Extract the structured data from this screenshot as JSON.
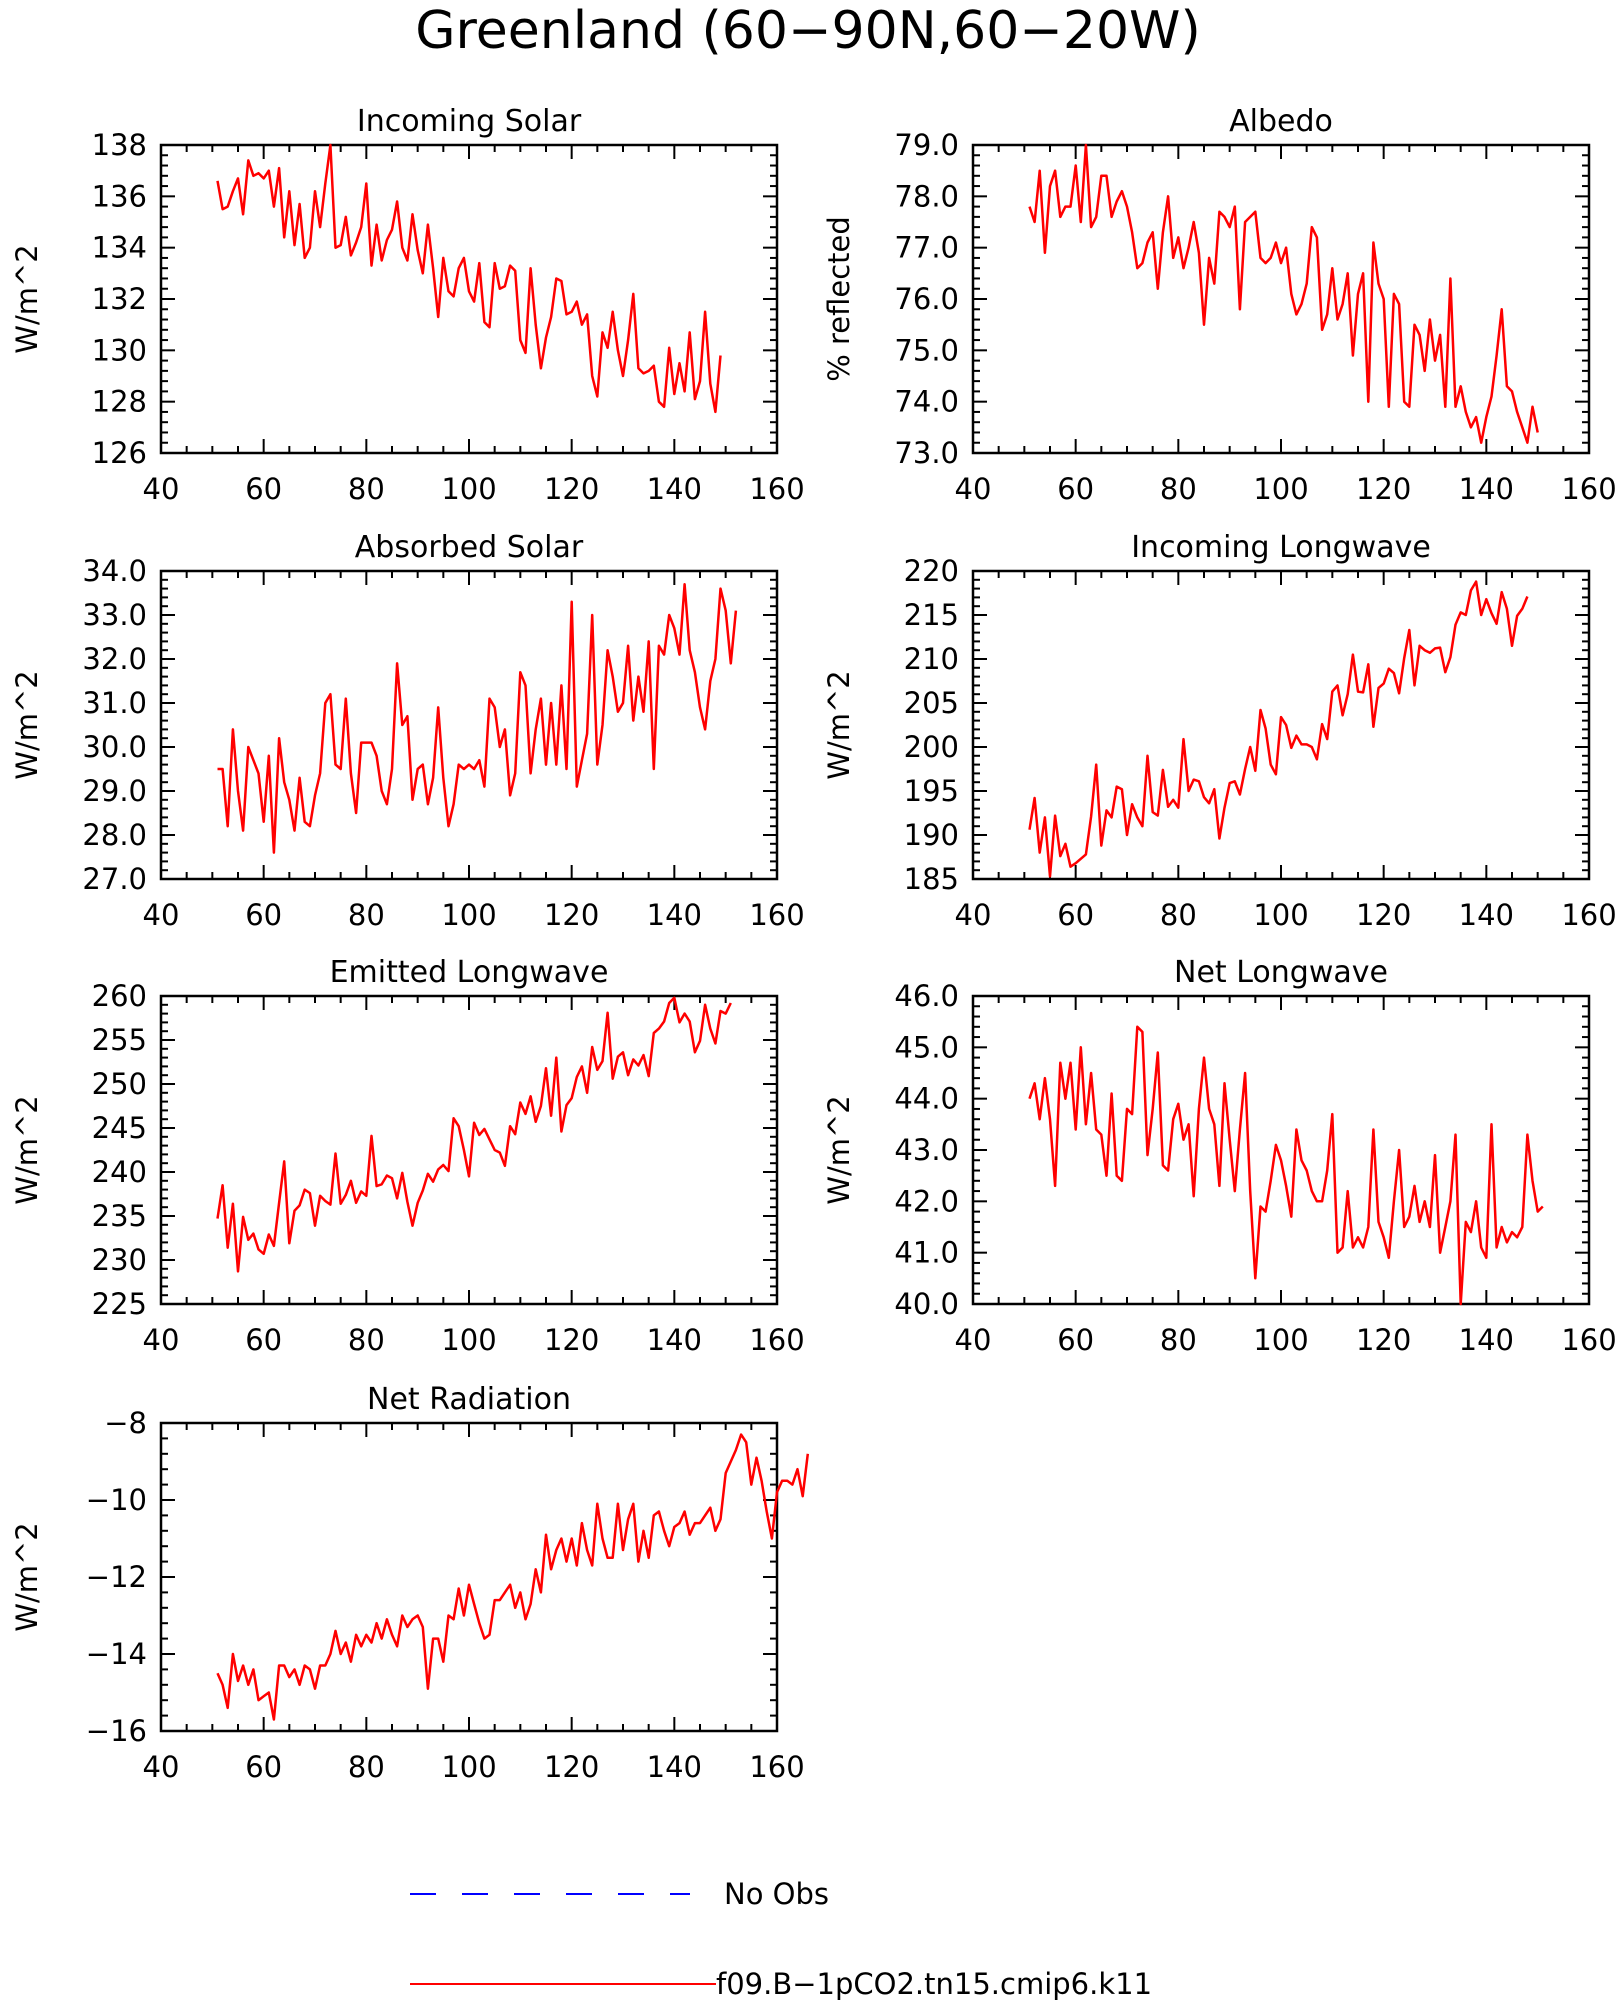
{
  "figure": {
    "title": "Greenland (60−90N,60−20W)",
    "legend": [
      {
        "name": "No Obs",
        "color": "#0000ff",
        "style": "dashed"
      },
      {
        "name": "f09.B−1pCO2.tn15.cmip6.k11",
        "color": "#ff0000",
        "style": "solid"
      }
    ]
  },
  "chart_data": [
    {
      "type": "line",
      "title": "Incoming Solar",
      "ylabel": "W/m^2",
      "xlabel": "",
      "xlim": [
        40,
        160
      ],
      "ylim": [
        126,
        138
      ],
      "xticks": [
        40,
        60,
        80,
        100,
        120,
        140,
        160
      ],
      "xtick_labels": [
        "40",
        "60",
        "80",
        "100",
        "120",
        "140",
        "160"
      ],
      "yticks": [
        126,
        128,
        130,
        132,
        134,
        136,
        138
      ],
      "ytick_labels": [
        "126",
        "128",
        "130",
        "132",
        "134",
        "136",
        "138"
      ],
      "line_color": "#ff0000",
      "x_start": 51,
      "values": [
        136.6,
        135.5,
        135.6,
        136.2,
        136.7,
        135.3,
        137.4,
        136.8,
        136.9,
        136.7,
        137.0,
        135.6,
        137.1,
        134.4,
        136.2,
        134.1,
        135.7,
        133.6,
        134.0,
        136.2,
        134.8,
        136.5,
        138.0,
        134.0,
        134.1,
        135.2,
        133.7,
        134.2,
        134.8,
        136.5,
        133.3,
        134.9,
        133.5,
        134.3,
        134.7,
        135.8,
        134.0,
        133.5,
        135.3,
        133.9,
        133.0,
        134.9,
        133.2,
        131.3,
        133.6,
        132.3,
        132.1,
        133.2,
        133.6,
        132.3,
        131.9,
        133.4,
        131.1,
        130.9,
        133.4,
        132.4,
        132.5,
        133.3,
        133.1,
        130.4,
        129.9,
        133.2,
        131.0,
        129.3,
        130.5,
        131.3,
        132.8,
        132.7,
        131.4,
        131.5,
        131.9,
        131.0,
        131.4,
        129.0,
        128.2,
        130.7,
        130.1,
        131.5,
        130.0,
        129.0,
        130.4,
        132.2,
        129.3,
        129.1,
        129.2,
        129.4,
        128.0,
        127.8,
        130.1,
        128.3,
        129.5,
        128.4,
        130.7,
        128.1,
        128.8,
        131.5,
        128.7,
        127.6,
        129.8
      ]
    },
    {
      "type": "line",
      "title": "Albedo",
      "ylabel": "% reflected",
      "xlabel": "",
      "xlim": [
        40,
        160
      ],
      "ylim": [
        73,
        79
      ],
      "xticks": [
        40,
        60,
        80,
        100,
        120,
        140,
        160
      ],
      "xtick_labels": [
        "40",
        "60",
        "80",
        "100",
        "120",
        "140",
        "160"
      ],
      "yticks": [
        73,
        74,
        75,
        76,
        77,
        78,
        79
      ],
      "ytick_labels": [
        "73.0",
        "74.0",
        "75.0",
        "76.0",
        "77.0",
        "78.0",
        "79.0"
      ],
      "line_color": "#ff0000",
      "x_start": 51,
      "values": [
        77.8,
        77.5,
        78.5,
        76.9,
        78.2,
        78.5,
        77.6,
        77.8,
        77.8,
        78.6,
        77.5,
        79.0,
        77.4,
        77.6,
        78.4,
        78.4,
        77.6,
        77.9,
        78.1,
        77.8,
        77.3,
        76.6,
        76.7,
        77.1,
        77.3,
        76.2,
        77.3,
        78.0,
        76.8,
        77.2,
        76.6,
        77.0,
        77.5,
        76.9,
        75.5,
        76.8,
        76.3,
        77.7,
        77.6,
        77.4,
        77.8,
        75.8,
        77.5,
        77.6,
        77.7,
        76.8,
        76.7,
        76.8,
        77.1,
        76.7,
        77.0,
        76.1,
        75.7,
        75.9,
        76.3,
        77.4,
        77.2,
        75.4,
        75.7,
        76.6,
        75.6,
        75.9,
        76.5,
        74.9,
        76.1,
        76.5,
        74.0,
        77.1,
        76.3,
        76.0,
        73.9,
        76.1,
        75.9,
        74.0,
        73.9,
        75.5,
        75.3,
        74.6,
        75.6,
        74.8,
        75.3,
        73.9,
        76.4,
        73.9,
        74.3,
        73.8,
        73.5,
        73.7,
        73.2,
        73.7,
        74.1,
        74.9,
        75.8,
        74.3,
        74.2,
        73.8,
        73.5,
        73.2,
        73.9,
        73.4
      ]
    },
    {
      "type": "line",
      "title": "Absorbed Solar",
      "ylabel": "W/m^2",
      "xlabel": "",
      "xlim": [
        40,
        160
      ],
      "ylim": [
        27,
        34
      ],
      "xticks": [
        40,
        60,
        80,
        100,
        120,
        140,
        160
      ],
      "xtick_labels": [
        "40",
        "60",
        "80",
        "100",
        "120",
        "140",
        "160"
      ],
      "yticks": [
        27,
        28,
        29,
        30,
        31,
        32,
        33,
        34
      ],
      "ytick_labels": [
        "27.0",
        "28.0",
        "29.0",
        "30.0",
        "31.0",
        "32.0",
        "33.0",
        "34.0"
      ],
      "line_color": "#ff0000",
      "x_start": 51,
      "values": [
        29.5,
        29.5,
        28.2,
        30.4,
        29.0,
        28.1,
        30.0,
        29.7,
        29.4,
        28.3,
        29.8,
        27.6,
        30.2,
        29.2,
        28.8,
        28.1,
        29.3,
        28.3,
        28.2,
        28.9,
        29.4,
        31.0,
        31.2,
        29.6,
        29.5,
        31.1,
        29.4,
        28.5,
        30.1,
        30.1,
        30.1,
        29.8,
        29.0,
        28.7,
        29.5,
        31.9,
        30.5,
        30.7,
        28.8,
        29.5,
        29.6,
        28.7,
        29.3,
        30.9,
        29.3,
        28.2,
        28.7,
        29.6,
        29.5,
        29.6,
        29.5,
        29.7,
        29.1,
        31.1,
        30.9,
        30.0,
        30.4,
        28.9,
        29.4,
        31.7,
        31.4,
        29.4,
        30.4,
        31.1,
        29.6,
        31.0,
        29.6,
        31.4,
        29.5,
        33.3,
        29.1,
        29.7,
        30.3,
        33.0,
        29.6,
        30.5,
        32.2,
        31.6,
        30.8,
        31.0,
        32.3,
        30.6,
        31.6,
        30.8,
        32.4,
        29.5,
        32.3,
        32.1,
        33.0,
        32.7,
        32.1,
        33.7,
        32.2,
        31.7,
        30.9,
        30.4,
        31.5,
        32.0,
        33.6,
        33.1,
        31.9,
        33.1
      ]
    },
    {
      "type": "line",
      "title": "Incoming Longwave",
      "ylabel": "W/m^2",
      "xlabel": "",
      "xlim": [
        40,
        160
      ],
      "ylim": [
        185,
        220
      ],
      "xticks": [
        40,
        60,
        80,
        100,
        120,
        140,
        160
      ],
      "xtick_labels": [
        "40",
        "60",
        "80",
        "100",
        "120",
        "140",
        "160"
      ],
      "yticks": [
        185,
        190,
        195,
        200,
        205,
        210,
        215,
        220
      ],
      "ytick_labels": [
        "185",
        "190",
        "195",
        "200",
        "205",
        "210",
        "215",
        "220"
      ],
      "line_color": "#ff0000",
      "x_start": 51,
      "values": [
        190.6,
        194.2,
        188.0,
        192.0,
        185.3,
        192.2,
        187.6,
        189.0,
        186.4,
        186.8,
        187.3,
        187.8,
        192.1,
        198.0,
        188.8,
        192.8,
        192.0,
        195.5,
        195.2,
        190.0,
        193.5,
        192.0,
        191.0,
        199.0,
        192.6,
        192.2,
        197.4,
        193.2,
        194.0,
        193.1,
        200.9,
        195.0,
        196.3,
        196.1,
        194.3,
        193.6,
        195.2,
        189.6,
        193.1,
        195.9,
        196.1,
        194.6,
        197.5,
        200.0,
        197.3,
        204.2,
        202.1,
        198.0,
        196.9,
        203.4,
        202.5,
        199.9,
        201.3,
        200.3,
        200.3,
        200.0,
        198.6,
        202.6,
        200.9,
        206.3,
        207.0,
        203.6,
        206.0,
        210.5,
        206.3,
        206.2,
        209.4,
        202.3,
        206.7,
        207.2,
        208.9,
        208.4,
        206.1,
        210.1,
        213.3,
        207.0,
        211.5,
        211.0,
        210.7,
        211.2,
        211.3,
        208.5,
        210.2,
        213.9,
        215.3,
        215.0,
        217.8,
        218.8,
        215.0,
        216.8,
        215.2,
        214.0,
        217.6,
        215.7,
        211.5,
        214.9,
        215.7,
        217.1
      ]
    },
    {
      "type": "line",
      "title": "Emitted Longwave",
      "ylabel": "W/m^2",
      "xlabel": "",
      "xlim": [
        40,
        160
      ],
      "ylim": [
        225,
        260
      ],
      "xticks": [
        40,
        60,
        80,
        100,
        120,
        140,
        160
      ],
      "xtick_labels": [
        "40",
        "60",
        "80",
        "100",
        "120",
        "140",
        "160"
      ],
      "yticks": [
        225,
        230,
        235,
        240,
        245,
        250,
        255,
        260
      ],
      "ytick_labels": [
        "225",
        "230",
        "235",
        "240",
        "245",
        "250",
        "255",
        "260"
      ],
      "line_color": "#ff0000",
      "x_start": 51,
      "values": [
        234.7,
        238.5,
        231.4,
        236.4,
        228.7,
        234.9,
        232.3,
        233.0,
        231.2,
        230.7,
        232.9,
        231.6,
        236.5,
        241.2,
        231.9,
        235.6,
        236.2,
        238.0,
        237.6,
        233.9,
        237.3,
        236.7,
        236.3,
        242.1,
        236.4,
        237.4,
        239.0,
        236.5,
        237.8,
        237.3,
        244.1,
        238.4,
        238.6,
        239.6,
        239.3,
        237.0,
        239.9,
        236.6,
        233.9,
        236.5,
        237.9,
        239.8,
        238.9,
        240.3,
        240.8,
        240.1,
        246.1,
        245.2,
        242.5,
        239.5,
        245.6,
        244.2,
        244.9,
        243.7,
        242.5,
        242.2,
        240.7,
        245.2,
        244.3,
        247.9,
        246.6,
        248.6,
        245.7,
        247.5,
        251.8,
        246.4,
        253.0,
        244.6,
        247.6,
        248.4,
        250.8,
        252.0,
        249.0,
        254.2,
        251.6,
        252.6,
        258.1,
        250.6,
        253.1,
        253.6,
        251.0,
        252.8,
        252.1,
        253.3,
        250.9,
        255.8,
        256.3,
        257.1,
        259.2,
        259.8,
        257.0,
        258.0,
        257.1,
        253.6,
        254.9,
        259.0,
        256.3,
        254.6,
        258.3,
        258.0,
        259.2
      ]
    },
    {
      "type": "line",
      "title": "Net Longwave",
      "ylabel": "W/m^2",
      "xlabel": "",
      "xlim": [
        40,
        160
      ],
      "ylim": [
        40,
        46
      ],
      "xticks": [
        40,
        60,
        80,
        100,
        120,
        140,
        160
      ],
      "xtick_labels": [
        "40",
        "60",
        "80",
        "100",
        "120",
        "140",
        "160"
      ],
      "yticks": [
        40,
        41,
        42,
        43,
        44,
        45,
        46
      ],
      "ytick_labels": [
        "40.0",
        "41.0",
        "42.0",
        "43.0",
        "44.0",
        "45.0",
        "46.0"
      ],
      "line_color": "#ff0000",
      "x_start": 51,
      "values": [
        44.0,
        44.3,
        43.6,
        44.4,
        43.6,
        42.3,
        44.7,
        44.0,
        44.7,
        43.4,
        45.0,
        43.5,
        44.5,
        43.4,
        43.3,
        42.5,
        44.1,
        42.5,
        42.4,
        43.8,
        43.7,
        45.4,
        45.3,
        42.9,
        43.8,
        44.9,
        42.7,
        42.6,
        43.6,
        43.9,
        43.2,
        43.5,
        42.1,
        43.8,
        44.8,
        43.8,
        43.5,
        42.3,
        44.3,
        43.2,
        42.2,
        43.4,
        44.5,
        42.2,
        40.5,
        41.9,
        41.8,
        42.4,
        43.1,
        42.8,
        42.3,
        41.7,
        43.4,
        42.8,
        42.6,
        42.2,
        42.0,
        42.0,
        42.6,
        43.7,
        41.0,
        41.1,
        42.2,
        41.1,
        41.3,
        41.1,
        41.5,
        43.4,
        41.6,
        41.3,
        40.9,
        42.0,
        43.0,
        41.5,
        41.7,
        42.3,
        41.6,
        42.0,
        41.5,
        42.9,
        41.0,
        41.5,
        42.0,
        43.3,
        40.0,
        41.6,
        41.4,
        42.0,
        41.1,
        40.9,
        43.5,
        41.1,
        41.5,
        41.2,
        41.4,
        41.3,
        41.5,
        43.3,
        42.4,
        41.8,
        41.9
      ]
    },
    {
      "type": "line",
      "title": "Net Radiation",
      "ylabel": "W/m^2",
      "xlabel": "",
      "xlim": [
        40,
        160
      ],
      "ylim": [
        -16,
        -8
      ],
      "xticks": [
        40,
        60,
        80,
        100,
        120,
        140,
        160
      ],
      "xtick_labels": [
        "40",
        "60",
        "80",
        "100",
        "120",
        "140",
        "160"
      ],
      "yticks": [
        -16,
        -14,
        -12,
        -10,
        -8
      ],
      "ytick_labels": [
        "−16",
        "−14",
        "−12",
        "−10",
        "−8"
      ],
      "line_color": "#ff0000",
      "x_start": 51,
      "values": [
        -14.5,
        -14.8,
        -15.4,
        -14.0,
        -14.7,
        -14.3,
        -14.8,
        -14.4,
        -15.2,
        -15.1,
        -15.0,
        -15.7,
        -14.3,
        -14.3,
        -14.6,
        -14.4,
        -14.8,
        -14.3,
        -14.4,
        -14.9,
        -14.3,
        -14.3,
        -14.0,
        -13.4,
        -14.0,
        -13.7,
        -14.2,
        -13.5,
        -13.8,
        -13.5,
        -13.7,
        -13.2,
        -13.6,
        -13.1,
        -13.5,
        -13.8,
        -13.0,
        -13.3,
        -13.1,
        -13.0,
        -13.3,
        -14.9,
        -13.6,
        -13.6,
        -14.2,
        -13.0,
        -13.1,
        -12.3,
        -13.0,
        -12.2,
        -12.7,
        -13.2,
        -13.6,
        -13.5,
        -12.6,
        -12.6,
        -12.4,
        -12.2,
        -12.8,
        -12.4,
        -13.1,
        -12.7,
        -11.8,
        -12.4,
        -10.9,
        -11.8,
        -11.3,
        -11.0,
        -11.6,
        -11.0,
        -11.7,
        -10.6,
        -11.3,
        -11.7,
        -10.1,
        -11.0,
        -11.5,
        -11.5,
        -10.1,
        -11.3,
        -10.5,
        -10.1,
        -11.6,
        -10.8,
        -11.5,
        -10.4,
        -10.3,
        -10.8,
        -11.2,
        -10.7,
        -10.6,
        -10.3,
        -10.9,
        -10.6,
        -10.6,
        -10.4,
        -10.2,
        -10.8,
        -10.5,
        -9.3,
        -9.0,
        -8.7,
        -8.3,
        -8.5,
        -9.6,
        -8.9,
        -9.5,
        -10.3,
        -11.0,
        -9.8,
        -9.5,
        -9.5,
        -9.6,
        -9.2,
        -9.9,
        -8.8
      ]
    }
  ]
}
